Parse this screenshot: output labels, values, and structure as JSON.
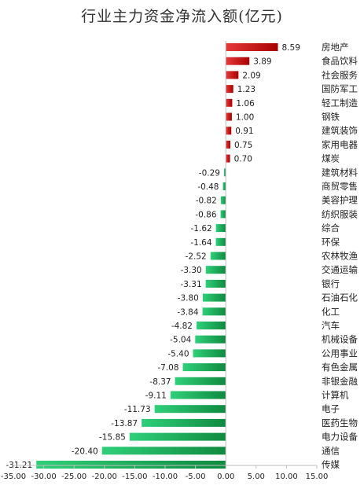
{
  "chart_data": {
    "type": "bar",
    "orientation": "horizontal",
    "title": "行业主力资金净流入额(亿元)",
    "categories": [
      "房地产",
      "食品饮料",
      "社会服务",
      "国防军工",
      "轻工制造",
      "钢铁",
      "建筑装饰",
      "家用电器",
      "煤炭",
      "建筑材料",
      "商贸零售",
      "美容护理",
      "纺织服装",
      "综合",
      "环保",
      "农林牧渔",
      "交通运输",
      "银行",
      "石油石化",
      "化工",
      "汽车",
      "机械设备",
      "公用事业",
      "有色金属",
      "非银金融",
      "计算机",
      "电子",
      "医药生物",
      "电力设备",
      "通信",
      "传媒"
    ],
    "values": [
      8.59,
      3.89,
      2.09,
      1.23,
      1.06,
      1.0,
      0.91,
      0.75,
      0.7,
      -0.29,
      -0.48,
      -0.82,
      -0.86,
      -1.62,
      -1.64,
      -2.52,
      -3.3,
      -3.31,
      -3.8,
      -3.84,
      -4.82,
      -5.04,
      -5.4,
      -7.08,
      -8.37,
      -9.11,
      -11.73,
      -13.87,
      -15.85,
      -20.4,
      -31.21
    ],
    "value_labels": [
      "8.59",
      "3.89",
      "2.09",
      "1.23",
      "1.06",
      "1.00",
      "0.91",
      "0.75",
      "0.70",
      "-0.29",
      "-0.48",
      "-0.82",
      "-0.86",
      "-1.62",
      "-1.64",
      "-2.52",
      "-3.30",
      "-3.31",
      "-3.80",
      "-3.84",
      "-4.82",
      "-5.04",
      "-5.40",
      "-7.08",
      "-8.37",
      "-9.11",
      "-11.73",
      "-13.87",
      "-15.85",
      "-20.40",
      "-31.21"
    ],
    "xlim": [
      -35,
      15
    ],
    "x_ticks": [
      -35,
      -30,
      -25,
      -20,
      -15,
      -10,
      -5,
      0,
      5,
      10,
      15
    ],
    "x_tick_labels": [
      "-35.00",
      "-30.00",
      "-25.00",
      "-20.00",
      "-15.00",
      "-10.00",
      "-5.00",
      "0.00",
      "5.00",
      "10.00",
      "15.00"
    ],
    "grid": false,
    "legend": "none",
    "colors": {
      "positive": "#cc0000",
      "negative": "#1fb35c",
      "axis": "#bfbfbf",
      "text": "#222222"
    }
  }
}
